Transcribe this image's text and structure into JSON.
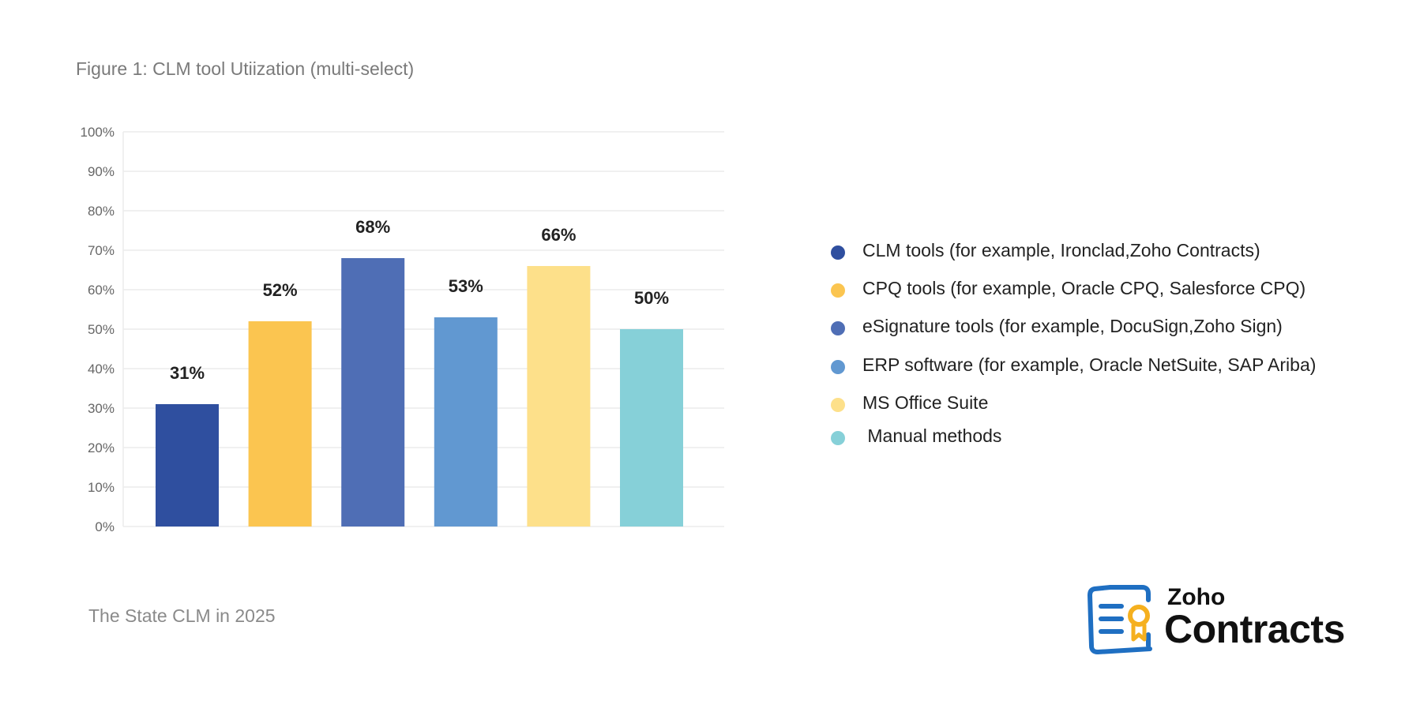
{
  "title": "Figure 1: CLM tool Utiization (multi-select)",
  "footer": "The State CLM in 2025",
  "logo": {
    "line1": "Zoho",
    "line2": "Contracts"
  },
  "chart_data": {
    "type": "bar",
    "title": "Figure 1: CLM tool Utiization (multi-select)",
    "categories": [
      "CLM tools (for example, Ironclad,Zoho Contracts)",
      "CPQ tools (for example, Oracle CPQ, Salesforce CPQ)",
      "eSignature tools (for example, DocuSign,Zoho Sign)",
      "ERP software (for example, Oracle NetSuite, SAP Ariba)",
      "MS Office Suite",
      " Manual methods"
    ],
    "values": [
      31,
      52,
      68,
      53,
      66,
      50
    ],
    "data_labels": [
      "31%",
      "52%",
      "68%",
      "53%",
      "66%",
      "50%"
    ],
    "colors": [
      "#2f4f9f",
      "#fbc550",
      "#4f6eb5",
      "#6198d1",
      "#fde08a",
      "#86d0d8"
    ],
    "ylim": [
      0,
      100
    ],
    "yticks": [
      "0%",
      "10%",
      "20%",
      "30%",
      "40%",
      "50%",
      "60%",
      "70%",
      "80%",
      "90%",
      "100%"
    ],
    "grid": true,
    "legend": "right"
  }
}
